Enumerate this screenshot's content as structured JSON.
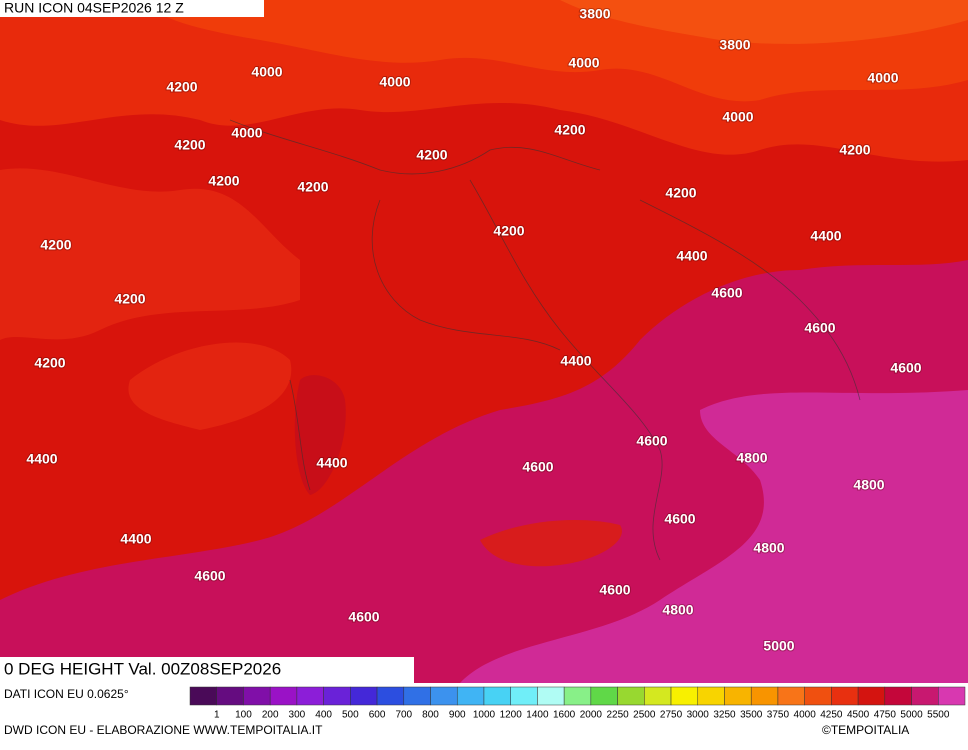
{
  "header": {
    "run": "RUN ICON 04SEP2026 12 Z"
  },
  "map": {
    "title": "0 DEG HEIGHT Val. 00Z08SEP2026",
    "contour_labels": [
      "3800",
      "3800",
      "4000",
      "4000",
      "4000",
      "4000",
      "4200",
      "4000",
      "4200",
      "4000",
      "4200",
      "4200",
      "4200",
      "4200",
      "4200",
      "4200",
      "4200",
      "4200",
      "4400",
      "4400",
      "4200",
      "4600",
      "4600",
      "4200",
      "4400",
      "4600",
      "4600",
      "4800",
      "4400",
      "4400",
      "4600",
      "4800",
      "4600",
      "4400",
      "4800",
      "4600",
      "4600",
      "4800",
      "4600",
      "5000"
    ]
  },
  "legend": {
    "source": "DATI ICON EU 0.0625°",
    "labels": [
      "1",
      "100",
      "200",
      "300",
      "400",
      "500",
      "600",
      "700",
      "800",
      "900",
      "1000",
      "1200",
      "1400",
      "1600",
      "2000",
      "2250",
      "2500",
      "2750",
      "3000",
      "3250",
      "3500",
      "3750",
      "4000",
      "4250",
      "4500",
      "4750",
      "5000",
      "5500"
    ],
    "colors": [
      "#4a0a58",
      "#650c80",
      "#800fa8",
      "#9a12c6",
      "#8c1ed8",
      "#6a22d8",
      "#4428d8",
      "#2c4ee0",
      "#3070e6",
      "#3c92ee",
      "#40b4f4",
      "#48d2f4",
      "#70eef8",
      "#b0fcf4",
      "#88f088",
      "#60d848",
      "#98d830",
      "#d4e820",
      "#f8f000",
      "#f8d400",
      "#f8b400",
      "#f89400",
      "#f87418",
      "#f05010",
      "#e83010",
      "#d41410",
      "#c4063a",
      "#c81870",
      "#d838b0"
    ]
  },
  "footer": {
    "credit": "DWD ICON EU - ELABORAZIONE WWW.TEMPOITALIA.IT",
    "copyright": "©TEMPOITALIA"
  }
}
